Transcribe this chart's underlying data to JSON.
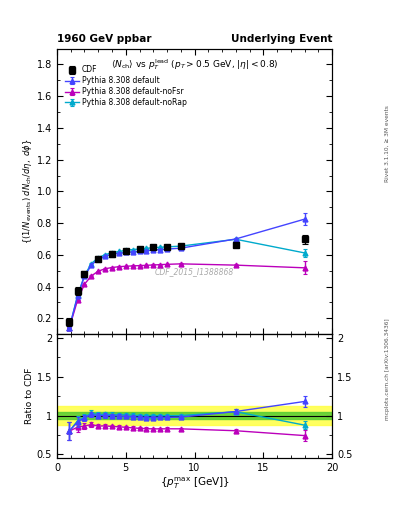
{
  "title_left": "1960 GeV ppbar",
  "title_right": "Underlying Event",
  "watermark": "CDF_2015_I1388868",
  "right_label_top": "Rivet 3.1.10, ≥ 3M events",
  "right_label_bottom": "mcplots.cern.ch [arXiv:1306.3436]",
  "cdf_x": [
    0.9,
    1.5,
    2.0,
    3.0,
    4.0,
    5.0,
    6.0,
    7.0,
    8.0,
    9.0,
    13.0,
    18.0
  ],
  "cdf_y": [
    0.175,
    0.37,
    0.48,
    0.575,
    0.605,
    0.622,
    0.637,
    0.647,
    0.651,
    0.655,
    0.665,
    0.698
  ],
  "cdf_yerr": [
    0.025,
    0.025,
    0.02,
    0.018,
    0.016,
    0.015,
    0.014,
    0.013,
    0.013,
    0.013,
    0.018,
    0.03
  ],
  "py_default_x": [
    0.9,
    1.5,
    2.0,
    2.5,
    3.0,
    3.5,
    4.0,
    4.5,
    5.0,
    5.5,
    6.0,
    6.5,
    7.0,
    7.5,
    8.0,
    9.0,
    13.0,
    18.0
  ],
  "py_default_y": [
    0.14,
    0.34,
    0.465,
    0.535,
    0.574,
    0.592,
    0.603,
    0.61,
    0.615,
    0.619,
    0.622,
    0.626,
    0.63,
    0.633,
    0.636,
    0.642,
    0.7,
    0.825
  ],
  "py_default_yerr": [
    0.003,
    0.003,
    0.003,
    0.003,
    0.003,
    0.003,
    0.003,
    0.003,
    0.003,
    0.003,
    0.003,
    0.003,
    0.003,
    0.003,
    0.003,
    0.003,
    0.005,
    0.04
  ],
  "py_noFsr_x": [
    0.9,
    1.5,
    2.0,
    2.5,
    3.0,
    3.5,
    4.0,
    4.5,
    5.0,
    5.5,
    6.0,
    6.5,
    7.0,
    7.5,
    8.0,
    9.0,
    13.0,
    18.0
  ],
  "py_noFsr_y": [
    0.14,
    0.315,
    0.415,
    0.467,
    0.497,
    0.512,
    0.52,
    0.525,
    0.528,
    0.53,
    0.532,
    0.534,
    0.536,
    0.538,
    0.54,
    0.543,
    0.535,
    0.518
  ],
  "py_noFsr_yerr": [
    0.003,
    0.003,
    0.003,
    0.003,
    0.003,
    0.003,
    0.003,
    0.003,
    0.003,
    0.003,
    0.003,
    0.003,
    0.003,
    0.003,
    0.003,
    0.003,
    0.005,
    0.04
  ],
  "py_noRap_x": [
    0.9,
    1.5,
    2.0,
    2.5,
    3.0,
    3.5,
    4.0,
    4.5,
    5.0,
    5.5,
    6.0,
    6.5,
    7.0,
    7.5,
    8.0,
    9.0,
    13.0,
    18.0
  ],
  "py_noRap_y": [
    0.14,
    0.345,
    0.47,
    0.545,
    0.582,
    0.601,
    0.613,
    0.621,
    0.628,
    0.633,
    0.637,
    0.641,
    0.645,
    0.648,
    0.65,
    0.655,
    0.698,
    0.612
  ],
  "py_noRap_yerr": [
    0.003,
    0.003,
    0.003,
    0.003,
    0.003,
    0.003,
    0.003,
    0.003,
    0.003,
    0.003,
    0.003,
    0.003,
    0.003,
    0.003,
    0.003,
    0.003,
    0.005,
    0.025
  ],
  "color_cdf": "#000000",
  "color_default": "#4444ff",
  "color_noFsr": "#bb00bb",
  "color_noRap": "#00aacc",
  "ylim_main": [
    0.1,
    1.9
  ],
  "yticks_main": [
    0.2,
    0.4,
    0.6,
    0.8,
    1.0,
    1.2,
    1.4,
    1.6,
    1.8
  ],
  "ylim_ratio": [
    0.45,
    2.05
  ],
  "yticks_ratio": [
    0.5,
    1.0,
    1.5,
    2.0
  ],
  "green_band": [
    0.95,
    1.05
  ],
  "yellow_band": [
    0.88,
    1.12
  ]
}
